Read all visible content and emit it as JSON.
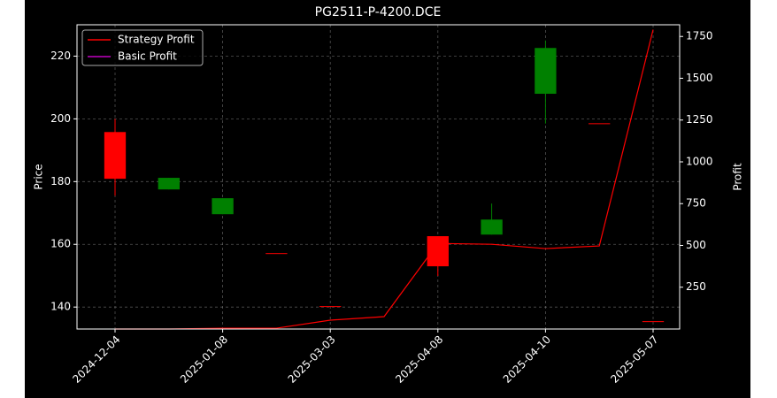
{
  "chart_data": {
    "type": "candlestick",
    "title": "PG2511-P-4200.DCE",
    "y_label": "Price",
    "y2_label": "Profit",
    "categories": [
      "2024-12-04",
      null,
      "2025-01-08",
      null,
      "2025-03-03",
      null,
      "2025-04-08",
      null,
      "2025-04-10",
      null,
      "2025-05-07"
    ],
    "open": [
      180.9,
      181.2,
      174.7,
      157.2,
      140.3,
      null,
      153.0,
      167.9,
      222.6,
      198.6,
      135.5
    ],
    "high": [
      200.0,
      181.2,
      174.7,
      157.2,
      140.3,
      null,
      162.6,
      173.0,
      225.0,
      198.6,
      135.5
    ],
    "low": [
      175.5,
      177.5,
      169.6,
      157.2,
      140.3,
      null,
      149.9,
      163.1,
      198.5,
      198.6,
      135.5
    ],
    "close": [
      195.8,
      177.5,
      169.6,
      157.2,
      140.3,
      null,
      162.6,
      163.1,
      208.0,
      198.6,
      135.5
    ],
    "up_color": "#ff0000",
    "down_color": "#008000",
    "ylim": [
      133,
      230
    ],
    "yticks": [
      140,
      160,
      180,
      200,
      220
    ],
    "y2lim": [
      0,
      1820
    ],
    "y2ticks": [
      250,
      500,
      750,
      1000,
      1250,
      1500,
      1750
    ],
    "series": [
      {
        "name": "Strategy Profit",
        "color": "#ff0000",
        "axis": "y2",
        "values": [
          0,
          0,
          5,
          5,
          53,
          74,
          512,
          507,
          481,
          497,
          1791
        ]
      },
      {
        "name": "Basic Profit",
        "color": "#bf00bf",
        "axis": "y2",
        "values": [
          null,
          null,
          null,
          null,
          null,
          null,
          null,
          null,
          null,
          null,
          null
        ]
      }
    ],
    "grid": true,
    "legend": "upper-left"
  }
}
